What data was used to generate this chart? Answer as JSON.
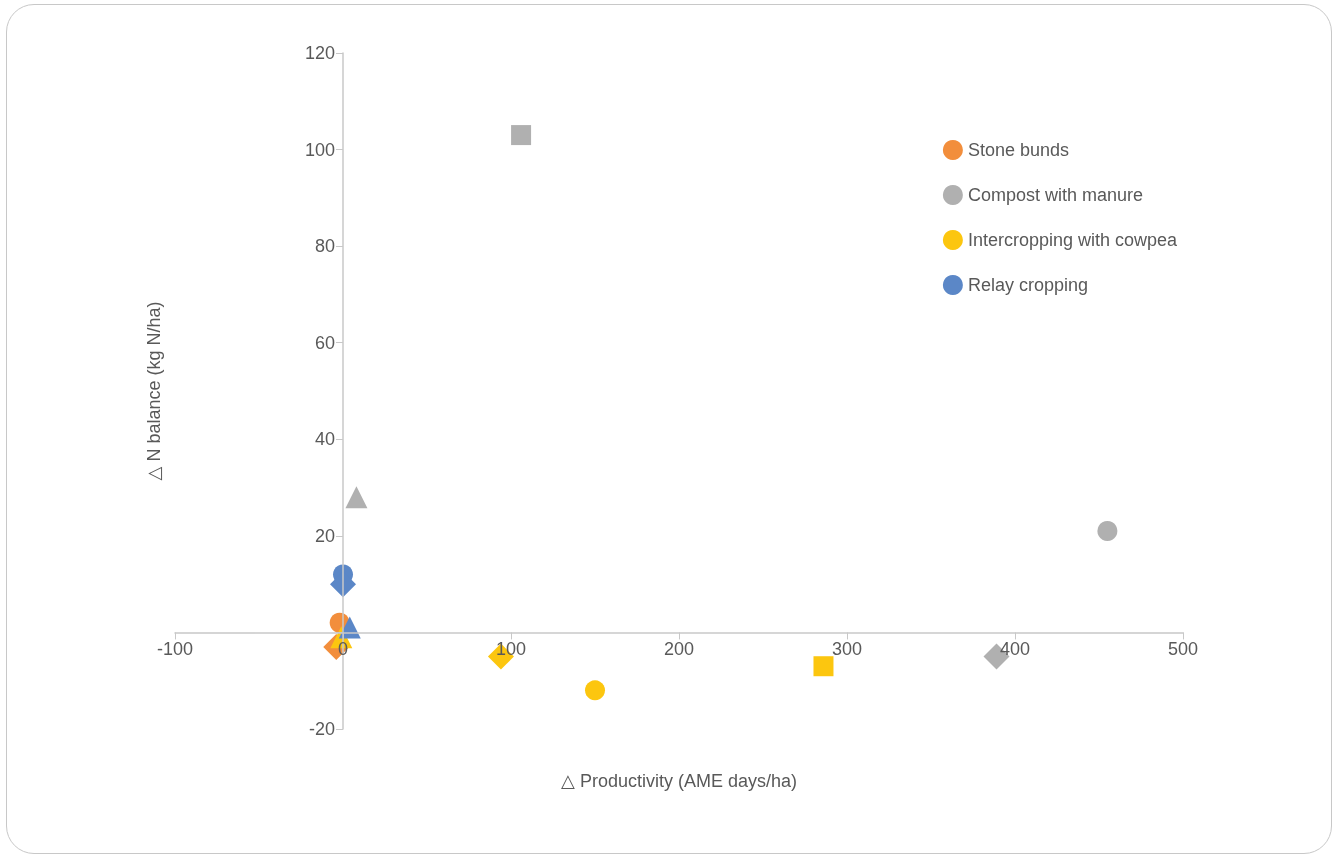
{
  "chart_data": {
    "type": "scatter",
    "xlabel": "△ Productivity (AME days/ha)",
    "ylabel": "△ N balance (kg N/ha)",
    "xlim": [
      -100,
      500
    ],
    "xticks": [
      -100,
      0,
      100,
      200,
      300,
      400,
      500
    ],
    "ylim": [
      -20,
      120
    ],
    "yticks": [
      -20,
      {
        "value": 0,
        "label": null
      },
      20,
      40,
      60,
      80,
      100,
      120
    ],
    "grid": false,
    "legend": "top right",
    "series": [
      {
        "name": "Stone bunds",
        "color": "#f28e3c",
        "marker": "circle",
        "x": [
          -2
        ],
        "values": [
          2
        ]
      },
      {
        "color": "#f28e3c",
        "marker": "diamond",
        "x": [
          -4
        ],
        "values": [
          -3
        ]
      },
      {
        "name": "Compost with manure",
        "color": "#b0b0b0",
        "marker": "circle",
        "x": [
          455
        ],
        "values": [
          21
        ]
      },
      {
        "color": "#b0b0b0",
        "marker": "square",
        "x": [
          106
        ],
        "values": [
          103
        ]
      },
      {
        "color": "#b0b0b0",
        "marker": "triangle",
        "x": [
          8
        ],
        "values": [
          28
        ]
      },
      {
        "color": "#b0b0b0",
        "marker": "diamond",
        "x": [
          389
        ],
        "values": [
          -5
        ]
      },
      {
        "name": "Intercropping with cowpea",
        "color": "#fcc60f",
        "marker": "circle",
        "x": [
          150
        ],
        "values": [
          -12
        ]
      },
      {
        "color": "#fcc60f",
        "marker": "square",
        "x": [
          286
        ],
        "values": [
          -7
        ]
      },
      {
        "color": "#fcc60f",
        "marker": "diamond",
        "x": [
          94
        ],
        "values": [
          -5
        ]
      },
      {
        "color": "#fcc60f",
        "marker": "triangle",
        "x": [
          -1
        ],
        "values": [
          -1
        ]
      },
      {
        "name": "Relay cropping",
        "color": "#5b87c7",
        "marker": "circle",
        "x": [
          0
        ],
        "values": [
          12
        ]
      },
      {
        "color": "#5b87c7",
        "marker": "diamond",
        "x": [
          0
        ],
        "values": [
          10
        ]
      },
      {
        "color": "#5b87c7",
        "marker": "triangle",
        "x": [
          4
        ],
        "values": [
          1
        ]
      }
    ]
  }
}
